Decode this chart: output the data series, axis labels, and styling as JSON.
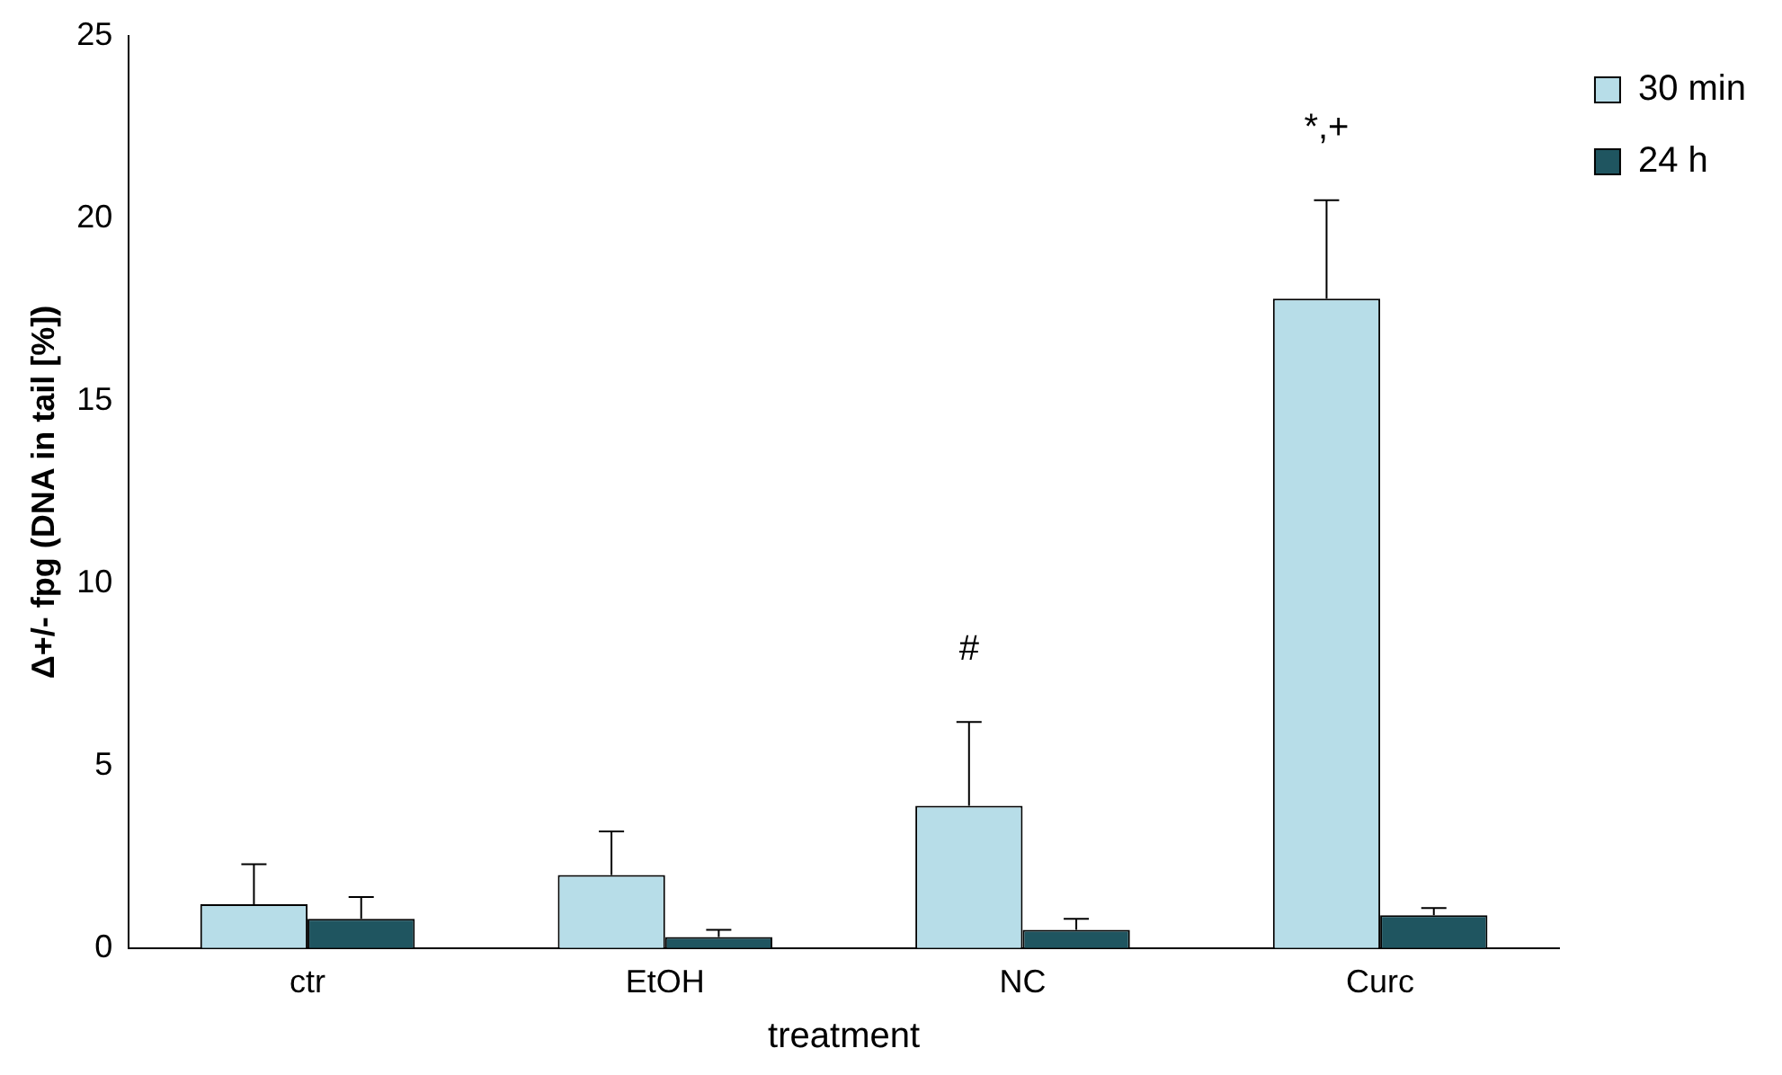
{
  "chart_data": {
    "type": "bar",
    "xlabel": "treatment",
    "ylabel": "Δ+/- fpg (DNA in tail [%])",
    "categories": [
      "ctr",
      "EtOH",
      "NC",
      "Curc"
    ],
    "series": [
      {
        "name": "30 min",
        "color": "#b7dde8",
        "values": [
          1.2,
          2.0,
          3.9,
          17.8
        ],
        "errors": [
          [
            1.2,
            2.3
          ],
          [
            2.0,
            3.2
          ],
          [
            3.9,
            6.2
          ],
          [
            17.8,
            20.5
          ]
        ]
      },
      {
        "name": "24 h",
        "color": "#1f5560",
        "values": [
          0.8,
          0.3,
          0.5,
          0.9
        ],
        "errors": [
          [
            0.8,
            1.4
          ],
          [
            0.3,
            0.5
          ],
          [
            0.5,
            0.8
          ],
          [
            0.9,
            1.1
          ]
        ]
      }
    ],
    "ylim": [
      0,
      25
    ],
    "yticks": [
      0,
      5,
      10,
      15,
      20,
      25
    ],
    "grid": false,
    "legend": "top right",
    "annotations": [
      "#",
      "*,+"
    ]
  }
}
